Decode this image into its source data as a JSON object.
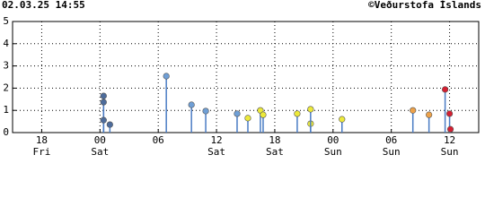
{
  "chart_data": {
    "type": "lollipop",
    "timestamp": "02.03.25 14:55",
    "credit": "©Veðurstofa Íslands",
    "xlim": [
      -3,
      45
    ],
    "xticks": [
      {
        "value": 0,
        "label": "18"
      },
      {
        "value": 6,
        "label": "00"
      },
      {
        "value": 12,
        "label": "06"
      },
      {
        "value": 18,
        "label": "12"
      },
      {
        "value": 24,
        "label": "18"
      },
      {
        "value": 30,
        "label": "00"
      },
      {
        "value": 36,
        "label": "06"
      },
      {
        "value": 42,
        "label": "12"
      }
    ],
    "day_labels": [
      "Fri",
      "Sat",
      null,
      "Sat",
      "Sat",
      "Sun",
      "Sun",
      "Sun"
    ],
    "ylim": [
      0,
      5
    ],
    "yticks": [
      0,
      1,
      2,
      3,
      4,
      5
    ],
    "grid": true,
    "stem_color": "#4a7cc4",
    "series": [
      {
        "color": "#4d6c9c",
        "x": [
          6.37,
          6.37,
          6.37,
          7.02
        ],
        "values": [
          1.65,
          1.37,
          0.56,
          0.36
        ]
      },
      {
        "color": "#6f9fd6",
        "x": [
          12.83,
          15.42,
          16.89,
          20.12
        ],
        "values": [
          2.54,
          1.25,
          0.97,
          0.85
        ]
      },
      {
        "color": "#ece93a",
        "x": [
          21.23,
          22.52,
          22.8,
          26.31,
          27.69,
          27.69,
          30.92
        ],
        "values": [
          0.65,
          1.0,
          0.8,
          0.85,
          0.4,
          1.05,
          0.6
        ]
      },
      {
        "color": "#eda24a",
        "x": [
          38.22,
          39.88
        ],
        "values": [
          1.0,
          0.8
        ]
      },
      {
        "color": "#d42032",
        "x": [
          41.54,
          42.0,
          42.09
        ],
        "values": [
          1.94,
          0.85,
          0.15
        ]
      }
    ]
  }
}
